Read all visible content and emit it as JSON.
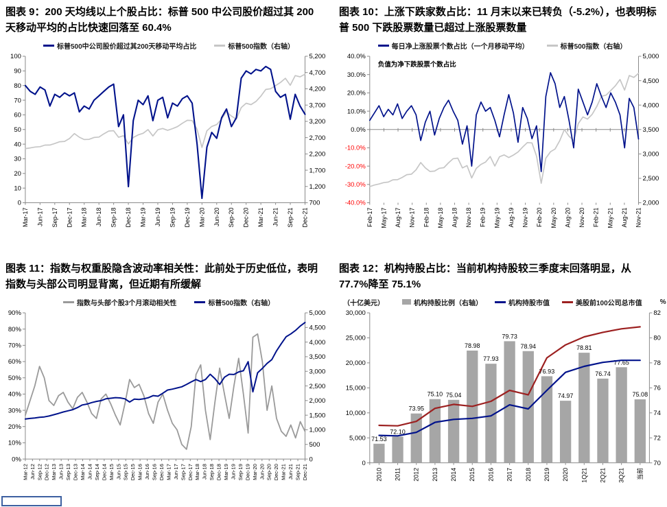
{
  "page": {
    "background": "#ffffff"
  },
  "colors": {
    "navy": "#00128b",
    "light_gray_line": "#c6c6c6",
    "mid_gray_line": "#9a9a9a",
    "bar_gray": "#a6a6a6",
    "dark_red": "#9c2020",
    "negative_tick_red": "#ff0000",
    "axis_gray": "#8a8a8a"
  },
  "chart_data": [
    {
      "type": "line",
      "title": "图表 9：200 天均线以上个股占比：标普 500 中公司股价超过其 200 天移动平均的占比快速回落至 60.4%",
      "legend": [
        {
          "label": "标普500中公司股价超过其200天移动平均占比",
          "marker": "line",
          "color": "#00128b"
        },
        {
          "label": "标普500指数（右轴）",
          "marker": "line",
          "color": "#c6c6c6"
        }
      ],
      "left_axis": {
        "min": 0,
        "max": 100,
        "ticks": [
          {
            "v": 0,
            "label": "0"
          },
          {
            "v": 10,
            "label": "10"
          },
          {
            "v": 20,
            "label": "20"
          },
          {
            "v": 30,
            "label": "30"
          },
          {
            "v": 40,
            "label": "40"
          },
          {
            "v": 50,
            "label": "50"
          },
          {
            "v": 60,
            "label": "60"
          },
          {
            "v": 70,
            "label": "70"
          },
          {
            "v": 80,
            "label": "80"
          },
          {
            "v": 90,
            "label": "90"
          },
          {
            "v": 100,
            "label": "100"
          }
        ]
      },
      "right_axis": {
        "min": 700,
        "max": 5200,
        "ticks": [
          {
            "v": 700,
            "label": "700"
          },
          {
            "v": 1200,
            "label": "1,200"
          },
          {
            "v": 1700,
            "label": "1,700"
          },
          {
            "v": 2200,
            "label": "2,200"
          },
          {
            "v": 2700,
            "label": "2,700"
          },
          {
            "v": 3200,
            "label": "3,200"
          },
          {
            "v": 3700,
            "label": "3,700"
          },
          {
            "v": 4200,
            "label": "4,200"
          },
          {
            "v": 4700,
            "label": "4,700"
          },
          {
            "v": 5200,
            "label": "5,200"
          }
        ]
      },
      "x_labels": [
        "Mar-17",
        "Jun-17",
        "Sep-17",
        "Dec-17",
        "Mar-18",
        "Jun-18",
        "Sep-18",
        "Dec-18",
        "Mar-19",
        "Jun-19",
        "Sep-19",
        "Dec-19",
        "Mar-20",
        "Jun-20",
        "Sep-20",
        "Dec-20",
        "Mar-21",
        "Jun-21",
        "Sep-21",
        "Dec-21"
      ],
      "series": [
        {
          "name": "spx-index",
          "axis": "right",
          "color": "#c6c6c6",
          "width": 1.7,
          "values": [
            2363,
            2384,
            2412,
            2423,
            2470,
            2472,
            2519,
            2575,
            2585,
            2674,
            2824,
            2714,
            2641,
            2648,
            2705,
            2718,
            2816,
            2902,
            2914,
            2712,
            2760,
            2507,
            2704,
            2785,
            2834,
            2946,
            2752,
            2942,
            2980,
            2926,
            2977,
            3038,
            3141,
            3231,
            3226,
            2954,
            2400,
            2912,
            3044,
            3100,
            3271,
            3500,
            3363,
            3270,
            3622,
            3756,
            3714,
            3811,
            3973,
            4181,
            4204,
            4298,
            4395,
            4523,
            4308,
            4605,
            4567,
            4650
          ]
        },
        {
          "name": "pct-above-200dma",
          "axis": "left",
          "color": "#00128b",
          "width": 2.1,
          "values": [
            80,
            76,
            74,
            79,
            77,
            66,
            74,
            72,
            75,
            73,
            75,
            62,
            66,
            64,
            70,
            73,
            76,
            79,
            81,
            52,
            60,
            11,
            56,
            70,
            67,
            73,
            56,
            70,
            72,
            58,
            68,
            66,
            71,
            73,
            68,
            40,
            3,
            38,
            48,
            44,
            58,
            64,
            52,
            58,
            85,
            90,
            88,
            91,
            90,
            93,
            91,
            76,
            72,
            74,
            57,
            74,
            66,
            60.4
          ]
        }
      ]
    },
    {
      "type": "line",
      "title": "图表 10：上涨下跌家数占比：11 月末以来已转负（-5.2%），也表明标普 500 下跌股票数量已超过上涨股票数量",
      "annotation": "负值为净下跌股票个数占比",
      "baseline": 0,
      "legend": [
        {
          "label": "每日净上涨股票个数占比（一个月移动平均）",
          "marker": "line",
          "color": "#00128b"
        },
        {
          "label": "标普500指数（右轴）",
          "marker": "line",
          "color": "#c6c6c6"
        }
      ],
      "left_axis": {
        "min": -40,
        "max": 40,
        "negative_color": "#ff0000",
        "ticks": [
          {
            "v": -40,
            "label": "-40.0%"
          },
          {
            "v": -30,
            "label": "-30.0%"
          },
          {
            "v": -20,
            "label": "-20.0%"
          },
          {
            "v": -10,
            "label": "-10.0%"
          },
          {
            "v": 0,
            "label": "0.0%"
          },
          {
            "v": 10,
            "label": "10.0%"
          },
          {
            "v": 20,
            "label": "20.0%"
          },
          {
            "v": 30,
            "label": "30.0%"
          },
          {
            "v": 40,
            "label": "40.0%"
          }
        ]
      },
      "right_axis": {
        "min": 2000,
        "max": 5000,
        "ticks": [
          {
            "v": 2000,
            "label": "2,000"
          },
          {
            "v": 2500,
            "label": "2,500"
          },
          {
            "v": 3000,
            "label": "3,000"
          },
          {
            "v": 3500,
            "label": "3,500"
          },
          {
            "v": 4000,
            "label": "4,000"
          },
          {
            "v": 4500,
            "label": "4,500"
          },
          {
            "v": 5000,
            "label": "5,000"
          }
        ]
      },
      "x_labels": [
        "Feb-17",
        "May-17",
        "Aug-17",
        "Nov-17",
        "Feb-18",
        "May-18",
        "Aug-18",
        "Nov-18",
        "Feb-19",
        "May-19",
        "Aug-19",
        "Nov-19",
        "Feb-20",
        "May-20",
        "Aug-20",
        "Nov-20",
        "Feb-21",
        "May-21",
        "Aug-21",
        "Nov-21"
      ],
      "series": [
        {
          "name": "spx-index",
          "axis": "right",
          "color": "#c6c6c6",
          "width": 1.7,
          "values": [
            2330,
            2363,
            2384,
            2412,
            2423,
            2470,
            2472,
            2519,
            2575,
            2585,
            2674,
            2824,
            2714,
            2641,
            2648,
            2705,
            2718,
            2816,
            2902,
            2914,
            2712,
            2760,
            2507,
            2704,
            2785,
            2834,
            2946,
            2752,
            2942,
            2980,
            2926,
            2977,
            3038,
            3141,
            3231,
            3226,
            2954,
            2400,
            2912,
            3044,
            3100,
            3271,
            3500,
            3363,
            3270,
            3622,
            3756,
            3714,
            3811,
            3973,
            4181,
            4204,
            4298,
            4395,
            4523,
            4308,
            4605,
            4567,
            4650
          ]
        },
        {
          "name": "net-advancers-1m-ma",
          "axis": "left",
          "color": "#00128b",
          "width": 1.7,
          "values": [
            5,
            9,
            13,
            7,
            11,
            8,
            14,
            6,
            10,
            13,
            8,
            -6,
            4,
            10,
            -3,
            6,
            12,
            16,
            10,
            5,
            -8,
            2,
            -20,
            8,
            15,
            10,
            12,
            5,
            -4,
            8,
            19,
            9,
            -7,
            12,
            6,
            -5,
            2,
            -23,
            18,
            31,
            25,
            12,
            18,
            5,
            -10,
            22,
            15,
            8,
            15,
            25,
            18,
            12,
            20,
            15,
            8,
            -10,
            17,
            12,
            -5.2
          ]
        }
      ]
    },
    {
      "type": "line",
      "title": "图表 11：指数与权重股隐含波动率相关性：此前处于历史低位，表明指数与头部公司明显背离，但近期有所缓解",
      "legend": [
        {
          "label": "指数与头部个股3个月滚动相关性",
          "marker": "line",
          "color": "#9a9a9a"
        },
        {
          "label": "标普500指数（右轴）",
          "marker": "line",
          "color": "#00128b"
        }
      ],
      "left_axis": {
        "min": 0,
        "max": 90,
        "ticks": [
          {
            "v": 0,
            "label": "0%"
          },
          {
            "v": 10,
            "label": "10%"
          },
          {
            "v": 20,
            "label": "20%"
          },
          {
            "v": 30,
            "label": "30%"
          },
          {
            "v": 40,
            "label": "40%"
          },
          {
            "v": 50,
            "label": "50%"
          },
          {
            "v": 60,
            "label": "60%"
          },
          {
            "v": 70,
            "label": "70%"
          },
          {
            "v": 80,
            "label": "80%"
          },
          {
            "v": 90,
            "label": "90%"
          }
        ]
      },
      "right_axis": {
        "min": 0,
        "max": 5000,
        "ticks": [
          {
            "v": 0,
            "label": "0"
          },
          {
            "v": 500,
            "label": "500"
          },
          {
            "v": 1000,
            "label": "1,000"
          },
          {
            "v": 1500,
            "label": "1,500"
          },
          {
            "v": 2000,
            "label": "2,000"
          },
          {
            "v": 2500,
            "label": "2,500"
          },
          {
            "v": 3000,
            "label": "3,000"
          },
          {
            "v": 3500,
            "label": "3,500"
          },
          {
            "v": 4000,
            "label": "4,000"
          },
          {
            "v": 4500,
            "label": "4,500"
          },
          {
            "v": 5000,
            "label": "5,000"
          }
        ]
      },
      "x_labels": [
        "Mar-12",
        "Jun-12",
        "Sep-12",
        "Dec-12",
        "Mar-13",
        "Jun-13",
        "Sep-13",
        "Dec-13",
        "Mar-14",
        "Jun-14",
        "Sep-14",
        "Dec-14",
        "Mar-15",
        "Jun-15",
        "Sep-15",
        "Dec-15",
        "Mar-16",
        "Jun-16",
        "Sep-16",
        "Dec-16",
        "Mar-17",
        "Jun-17",
        "Sep-17",
        "Dec-17",
        "Mar-18",
        "Jun-18",
        "Sep-18",
        "Dec-18",
        "Mar-19",
        "Jun-19",
        "Sep-19",
        "Dec-19",
        "Mar-20",
        "Jun-20",
        "Sep-20",
        "Dec-20",
        "Mar-21",
        "Jun-21",
        "Sep-21",
        "Dec-21"
      ],
      "series": [
        {
          "name": "index-vs-top-stocks-3m-rolling-correlation",
          "axis": "left",
          "color": "#9a9a9a",
          "width": 1.8,
          "values": [
            27,
            36,
            45,
            57,
            50,
            36,
            33,
            39,
            41,
            35,
            31,
            38,
            41,
            35,
            28,
            25,
            37,
            40,
            34,
            27,
            21,
            34,
            49,
            44,
            46,
            39,
            28,
            22,
            35,
            40,
            30,
            22,
            18,
            9,
            6,
            20,
            52,
            58,
            30,
            12,
            35,
            56,
            40,
            25,
            45,
            62,
            40,
            16,
            75,
            77,
            60,
            30,
            45,
            25,
            17,
            14,
            21,
            13,
            23,
            17
          ]
        },
        {
          "name": "spx-index",
          "axis": "right",
          "color": "#00128b",
          "width": 2,
          "values": [
            1370,
            1390,
            1405,
            1430,
            1440,
            1470,
            1515,
            1560,
            1610,
            1650,
            1690,
            1760,
            1850,
            1880,
            1930,
            1970,
            2000,
            2060,
            2080,
            2100,
            2090,
            2060,
            1950,
            2050,
            2040,
            2060,
            2100,
            2170,
            2150,
            2250,
            2360,
            2390,
            2430,
            2470,
            2550,
            2640,
            2720,
            2650,
            2720,
            2900,
            2750,
            2550,
            2800,
            2900,
            2890,
            2980,
            3020,
            3330,
            2300,
            2950,
            3100,
            3270,
            3400,
            3700,
            3950,
            4180,
            4280,
            4400,
            4550,
            4670
          ]
        }
      ]
    },
    {
      "type": "bar-line",
      "title": "图表 12：机构持股占比：当前机构持股较三季度末回落明显，从 77.7%降至 75.1%",
      "unit_left": "（十亿美元）",
      "unit_right": "%",
      "legend": [
        {
          "label": "机构持股比例（右轴）",
          "marker": "bar",
          "color": "#a6a6a6"
        },
        {
          "label": "机构持股市值",
          "marker": "line",
          "color": "#00128b"
        },
        {
          "label": "美股前100公司总市值",
          "marker": "line",
          "color": "#9c2020"
        }
      ],
      "left_axis": {
        "min": 0,
        "max": 30000,
        "ticks": [
          {
            "v": 0,
            "label": "0"
          },
          {
            "v": 5000,
            "label": "5,000"
          },
          {
            "v": 10000,
            "label": "10,000"
          },
          {
            "v": 15000,
            "label": "15,000"
          },
          {
            "v": 20000,
            "label": "20,000"
          },
          {
            "v": 25000,
            "label": "25,000"
          },
          {
            "v": 30000,
            "label": "30,000"
          }
        ]
      },
      "right_axis": {
        "min": 70,
        "max": 82,
        "ticks": [
          {
            "v": 70,
            "label": "70"
          },
          {
            "v": 72,
            "label": "72"
          },
          {
            "v": 74,
            "label": "74"
          },
          {
            "v": 76,
            "label": "76"
          },
          {
            "v": 78,
            "label": "78"
          },
          {
            "v": 80,
            "label": "80"
          },
          {
            "v": 82,
            "label": "82"
          }
        ]
      },
      "x_labels": [
        "2010",
        "2011",
        "2012",
        "2013",
        "2014",
        "2015",
        "2016",
        "2017",
        "2018",
        "2019",
        "2020",
        "1Q21",
        "2Q21",
        "3Q21",
        "当前"
      ],
      "bars": {
        "name": "institutional-holding-ratio",
        "axis": "right",
        "color": "#a6a6a6",
        "values": [
          71.53,
          72.1,
          73.95,
          75.1,
          75.04,
          78.98,
          77.93,
          79.73,
          78.94,
          76.93,
          74.97,
          78.81,
          76.74,
          77.65,
          75.08
        ],
        "labels": [
          "71.53",
          "72.10",
          "73.95",
          "75.10",
          "75.04",
          "78.98",
          "77.93",
          "79.73",
          "78.94",
          "76.93",
          "74.97",
          "78.81",
          "76.74",
          "77.65",
          "75.08"
        ]
      },
      "series": [
        {
          "name": "institutional-holdings-market-value",
          "axis": "left",
          "color": "#00128b",
          "width": 2.2,
          "values": [
            5500,
            5400,
            6100,
            8100,
            8700,
            8900,
            9400,
            11600,
            10800,
            14500,
            18100,
            19300,
            20100,
            20500,
            20500
          ]
        },
        {
          "name": "top-100-us-companies-total-market-cap",
          "axis": "left",
          "color": "#9c2020",
          "width": 2.2,
          "values": [
            7500,
            7400,
            8300,
            10900,
            11700,
            11300,
            12300,
            14500,
            13600,
            21000,
            23600,
            25200,
            26100,
            26800,
            27200
          ]
        }
      ]
    }
  ]
}
